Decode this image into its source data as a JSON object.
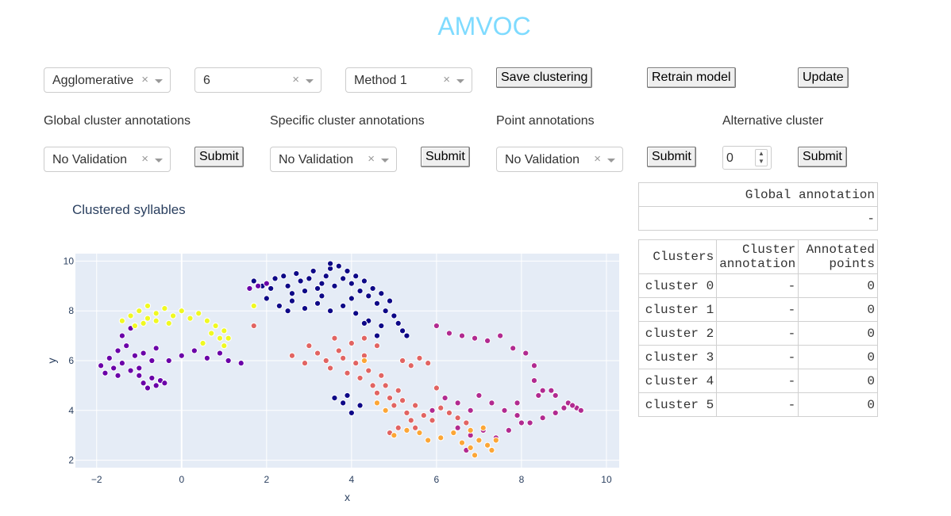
{
  "app": {
    "title": "AMVOC"
  },
  "controls": {
    "algorithm": "Agglomerative",
    "num_clusters": "6",
    "method": "Method 1",
    "save_label": "Save clustering",
    "retrain_label": "Retrain model",
    "update_label": "Update"
  },
  "annotations": {
    "global_label": "Global cluster annotations",
    "global_value": "No Validation",
    "specific_label": "Specific cluster annotations",
    "specific_value": "No Validation",
    "point_label": "Point annotations",
    "point_value": "No Validation",
    "alt_label": "Alternative cluster",
    "alt_value": "0",
    "submit_label": "Submit",
    "clear_glyph": "×"
  },
  "global_table": {
    "header": "Global annotation",
    "value": "-"
  },
  "clusters_table": {
    "headers": [
      "Clusters",
      "Cluster annotation",
      "Annotated points"
    ],
    "header_lines": [
      [
        "Clusters"
      ],
      [
        "Cluster",
        "annotation"
      ],
      [
        "Annotated",
        "points"
      ]
    ],
    "rows": [
      {
        "cluster": "cluster 0",
        "annotation": "-",
        "points": "0"
      },
      {
        "cluster": "cluster 1",
        "annotation": "-",
        "points": "0"
      },
      {
        "cluster": "cluster 2",
        "annotation": "-",
        "points": "0"
      },
      {
        "cluster": "cluster 3",
        "annotation": "-",
        "points": "0"
      },
      {
        "cluster": "cluster 4",
        "annotation": "-",
        "points": "0"
      },
      {
        "cluster": "cluster 5",
        "annotation": "-",
        "points": "0"
      }
    ]
  },
  "chart_data": {
    "type": "scatter",
    "title": "Clustered syllables",
    "xlabel": "x",
    "ylabel": "y",
    "xlim": [
      -2.5,
      10.3
    ],
    "ylim": [
      1.7,
      10.3
    ],
    "xticks": [
      -2,
      0,
      2,
      4,
      6,
      8,
      10
    ],
    "xtick_labels": [
      "−2",
      "0",
      "2",
      "4",
      "6",
      "8",
      "10"
    ],
    "yticks": [
      2,
      4,
      6,
      8,
      10
    ],
    "ytick_labels": [
      "2",
      "4",
      "6",
      "8",
      "10"
    ],
    "grid": true,
    "series": [
      {
        "name": "cluster 0",
        "color": "#0d0887",
        "points": [
          [
            1.7,
            9.2
          ],
          [
            1.9,
            9.0
          ],
          [
            2.1,
            8.9
          ],
          [
            2.2,
            9.3
          ],
          [
            2.4,
            9.4
          ],
          [
            2.5,
            9.0
          ],
          [
            2.6,
            8.7
          ],
          [
            2.7,
            9.5
          ],
          [
            2.8,
            9.2
          ],
          [
            2.9,
            8.8
          ],
          [
            3.0,
            9.3
          ],
          [
            3.1,
            9.6
          ],
          [
            3.2,
            8.9
          ],
          [
            3.3,
            9.1
          ],
          [
            3.4,
            9.4
          ],
          [
            3.5,
            9.7
          ],
          [
            3.6,
            9.0
          ],
          [
            3.7,
            9.8
          ],
          [
            3.8,
            9.3
          ],
          [
            3.9,
            9.6
          ],
          [
            4.0,
            9.1
          ],
          [
            4.1,
            9.4
          ],
          [
            4.2,
            8.8
          ],
          [
            4.3,
            9.2
          ],
          [
            4.4,
            8.6
          ],
          [
            4.5,
            8.9
          ],
          [
            4.6,
            8.3
          ],
          [
            4.7,
            8.7
          ],
          [
            4.8,
            8.0
          ],
          [
            4.9,
            8.4
          ],
          [
            5.0,
            7.8
          ],
          [
            5.1,
            7.5
          ],
          [
            5.2,
            7.2
          ],
          [
            5.3,
            7.0
          ],
          [
            2.0,
            8.5
          ],
          [
            2.3,
            8.2
          ],
          [
            2.6,
            8.4
          ],
          [
            2.9,
            8.1
          ],
          [
            3.2,
            8.3
          ],
          [
            3.5,
            8.0
          ],
          [
            3.8,
            8.2
          ],
          [
            4.1,
            7.9
          ],
          [
            4.4,
            7.6
          ],
          [
            4.7,
            7.4
          ],
          [
            3.6,
            4.5
          ],
          [
            3.8,
            4.3
          ],
          [
            4.0,
            3.9
          ],
          [
            4.2,
            4.2
          ],
          [
            3.9,
            4.6
          ],
          [
            3.5,
            9.9
          ],
          [
            4.0,
            8.5
          ],
          [
            3.3,
            8.6
          ],
          [
            2.5,
            8.0
          ],
          [
            4.3,
            7.5
          ],
          [
            4.6,
            7.0
          ]
        ]
      },
      {
        "name": "cluster 1",
        "color": "#6a00a8",
        "points": [
          [
            -1.9,
            5.8
          ],
          [
            -1.8,
            5.5
          ],
          [
            -1.7,
            6.1
          ],
          [
            -1.6,
            5.7
          ],
          [
            -1.5,
            6.4
          ],
          [
            -1.4,
            5.9
          ],
          [
            -1.3,
            6.6
          ],
          [
            -1.2,
            5.6
          ],
          [
            -1.1,
            6.2
          ],
          [
            -1.0,
            5.4
          ],
          [
            -0.9,
            5.1
          ],
          [
            -0.8,
            4.9
          ],
          [
            -0.7,
            5.3
          ],
          [
            -0.6,
            5.0
          ],
          [
            -0.5,
            5.2
          ],
          [
            -0.4,
            5.1
          ],
          [
            -0.9,
            6.3
          ],
          [
            -0.6,
            6.5
          ],
          [
            -0.3,
            6.0
          ],
          [
            0.0,
            6.2
          ],
          [
            0.3,
            6.4
          ],
          [
            0.6,
            6.1
          ],
          [
            0.9,
            6.3
          ],
          [
            1.1,
            6.0
          ],
          [
            1.4,
            5.9
          ],
          [
            1.6,
            8.9
          ],
          [
            1.8,
            9.0
          ],
          [
            2.0,
            9.1
          ],
          [
            -1.4,
            7.0
          ],
          [
            -1.2,
            7.3
          ],
          [
            -1.5,
            5.4
          ],
          [
            -1.0,
            5.7
          ],
          [
            -0.7,
            6.0
          ]
        ]
      },
      {
        "name": "cluster 2",
        "color": "#b12a90",
        "points": [
          [
            6.0,
            7.4
          ],
          [
            6.3,
            7.1
          ],
          [
            6.6,
            7.0
          ],
          [
            6.9,
            6.9
          ],
          [
            7.2,
            6.8
          ],
          [
            7.5,
            7.0
          ],
          [
            7.8,
            6.5
          ],
          [
            8.1,
            6.3
          ],
          [
            8.3,
            5.8
          ],
          [
            8.3,
            5.2
          ],
          [
            8.5,
            4.8
          ],
          [
            8.8,
            4.6
          ],
          [
            9.1,
            4.3
          ],
          [
            9.3,
            4.1
          ],
          [
            9.4,
            4.0
          ],
          [
            5.9,
            4.0
          ],
          [
            6.2,
            4.5
          ],
          [
            6.5,
            4.3
          ],
          [
            6.8,
            4.0
          ],
          [
            7.0,
            4.6
          ],
          [
            7.3,
            4.3
          ],
          [
            7.6,
            4.0
          ],
          [
            7.9,
            3.8
          ],
          [
            8.2,
            3.5
          ],
          [
            8.5,
            3.7
          ],
          [
            8.8,
            3.9
          ],
          [
            9.0,
            4.1
          ],
          [
            6.5,
            3.3
          ],
          [
            6.8,
            3.0
          ],
          [
            7.1,
            3.2
          ],
          [
            7.4,
            2.9
          ],
          [
            7.7,
            3.2
          ],
          [
            8.0,
            3.5
          ],
          [
            8.4,
            4.6
          ],
          [
            8.7,
            4.8
          ],
          [
            9.2,
            4.2
          ],
          [
            6.7,
            2.4
          ],
          [
            7.9,
            4.3
          ]
        ]
      },
      {
        "name": "cluster 3",
        "color": "#e16462",
        "points": [
          [
            3.0,
            6.6
          ],
          [
            3.2,
            6.3
          ],
          [
            3.4,
            6.0
          ],
          [
            3.5,
            5.7
          ],
          [
            3.7,
            6.4
          ],
          [
            3.8,
            6.1
          ],
          [
            3.9,
            5.5
          ],
          [
            4.0,
            6.7
          ],
          [
            4.1,
            5.9
          ],
          [
            4.2,
            5.3
          ],
          [
            4.3,
            6.2
          ],
          [
            4.4,
            5.6
          ],
          [
            4.5,
            5.0
          ],
          [
            4.6,
            4.7
          ],
          [
            4.7,
            5.4
          ],
          [
            4.8,
            5.0
          ],
          [
            4.9,
            4.5
          ],
          [
            5.0,
            4.2
          ],
          [
            5.1,
            4.8
          ],
          [
            5.2,
            4.4
          ],
          [
            5.3,
            3.9
          ],
          [
            5.4,
            3.6
          ],
          [
            5.5,
            4.2
          ],
          [
            5.7,
            3.8
          ],
          [
            5.9,
            3.6
          ],
          [
            6.1,
            4.1
          ],
          [
            6.3,
            3.9
          ],
          [
            6.5,
            3.7
          ],
          [
            6.7,
            3.5
          ],
          [
            5.2,
            6.0
          ],
          [
            5.4,
            5.8
          ],
          [
            5.6,
            6.1
          ],
          [
            5.8,
            5.9
          ],
          [
            3.6,
            6.9
          ],
          [
            4.3,
            6.9
          ],
          [
            4.6,
            6.6
          ],
          [
            1.7,
            7.4
          ],
          [
            2.6,
            6.2
          ],
          [
            2.9,
            5.9
          ],
          [
            4.9,
            3.1
          ],
          [
            5.1,
            3.3
          ],
          [
            6.0,
            4.9
          ],
          [
            5.5,
            3.3
          ]
        ]
      },
      {
        "name": "cluster 4",
        "color": "#fca636",
        "points": [
          [
            5.0,
            3.0
          ],
          [
            5.3,
            3.2
          ],
          [
            5.6,
            3.1
          ],
          [
            5.8,
            2.8
          ],
          [
            6.1,
            2.9
          ],
          [
            6.4,
            3.1
          ],
          [
            6.6,
            2.7
          ],
          [
            6.8,
            2.5
          ],
          [
            7.0,
            2.8
          ],
          [
            7.2,
            2.6
          ],
          [
            7.4,
            2.8
          ],
          [
            6.8,
            3.2
          ],
          [
            7.1,
            3.3
          ],
          [
            4.6,
            4.3
          ],
          [
            4.8,
            4.0
          ],
          [
            4.3,
            6.0
          ],
          [
            6.9,
            2.2
          ],
          [
            7.3,
            2.4
          ]
        ]
      },
      {
        "name": "cluster 5",
        "color": "#f0f921",
        "points": [
          [
            -1.4,
            7.6
          ],
          [
            -1.2,
            7.8
          ],
          [
            -1.0,
            8.0
          ],
          [
            -0.8,
            7.7
          ],
          [
            -0.6,
            7.9
          ],
          [
            -0.4,
            8.1
          ],
          [
            -0.2,
            7.8
          ],
          [
            0.0,
            8.0
          ],
          [
            0.2,
            7.7
          ],
          [
            0.4,
            7.9
          ],
          [
            0.6,
            7.6
          ],
          [
            0.8,
            7.4
          ],
          [
            1.0,
            7.2
          ],
          [
            1.1,
            6.9
          ],
          [
            1.0,
            6.6
          ],
          [
            0.9,
            6.9
          ],
          [
            -0.9,
            7.5
          ],
          [
            -0.6,
            7.6
          ],
          [
            -0.3,
            7.5
          ],
          [
            0.5,
            6.7
          ],
          [
            0.7,
            7.1
          ],
          [
            -1.1,
            7.4
          ],
          [
            -0.8,
            8.2
          ],
          [
            1.7,
            8.2
          ]
        ]
      }
    ]
  }
}
